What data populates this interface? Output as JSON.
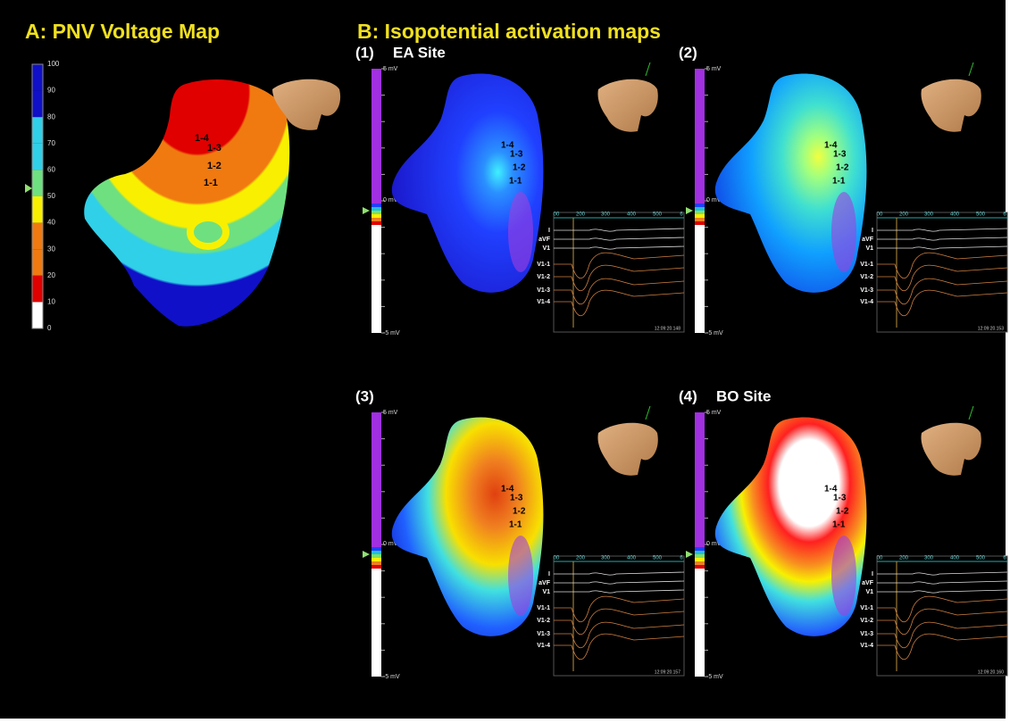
{
  "header": {
    "panel_a_title": "A: PNV Voltage Map",
    "panel_b_title": "B: Isopotential activation maps"
  },
  "voltage_map": {
    "scale_labels": [
      "100",
      "90",
      "80",
      "70",
      "60",
      "50",
      "40",
      "30",
      "20",
      "10",
      "0"
    ],
    "electrodes": [
      "1-4",
      "1-3",
      "1-2",
      "1-1"
    ]
  },
  "activation_maps": [
    {
      "label": "(1)",
      "site": "EA Site",
      "scale_top": "5 mV",
      "scale_mid": "0 mV",
      "scale_bottom": "-5 mV",
      "electrodes": [
        "1-4",
        "1-3",
        "1-2",
        "1-1"
      ],
      "time_ticks": [
        "00",
        "200",
        "300",
        "400",
        "500",
        "6"
      ],
      "leads": [
        "I",
        "aVF",
        "V1",
        "V1-1",
        "V1-2",
        "V1-3",
        "V1-4"
      ],
      "timestamp": "12:09:20.148"
    },
    {
      "label": "(2)",
      "scale_top": "5 mV",
      "scale_mid": "0 mV",
      "scale_bottom": "-5 mV",
      "electrodes": [
        "1-4",
        "1-3",
        "1-2",
        "1-1"
      ],
      "time_ticks": [
        "00",
        "200",
        "300",
        "400",
        "500",
        "6"
      ],
      "leads": [
        "I",
        "aVF",
        "V1",
        "V1-1",
        "V1-2",
        "V1-3",
        "V1-4"
      ],
      "timestamp": "12:09:20.153"
    },
    {
      "label": "(3)",
      "scale_top": "5 mV",
      "scale_mid": "0 mV",
      "scale_bottom": "-5 mV",
      "electrodes": [
        "1-4",
        "1-3",
        "1-2",
        "1-1"
      ],
      "time_ticks": [
        "00",
        "200",
        "300",
        "400",
        "500",
        "6"
      ],
      "leads": [
        "I",
        "aVF",
        "V1",
        "V1-1",
        "V1-2",
        "V1-3",
        "V1-4"
      ],
      "timestamp": "12:09:20.157"
    },
    {
      "label": "(4)",
      "site": "BO Site",
      "scale_top": "5 mV",
      "scale_mid": "0 mV",
      "scale_bottom": "-5 mV",
      "electrodes": [
        "1-4",
        "1-3",
        "1-2",
        "1-1"
      ],
      "time_ticks": [
        "00",
        "200",
        "300",
        "400",
        "500",
        "6"
      ],
      "leads": [
        "I",
        "aVF",
        "V1",
        "V1-1",
        "V1-2",
        "V1-3",
        "V1-4"
      ],
      "timestamp": "12:09:20.160"
    }
  ]
}
